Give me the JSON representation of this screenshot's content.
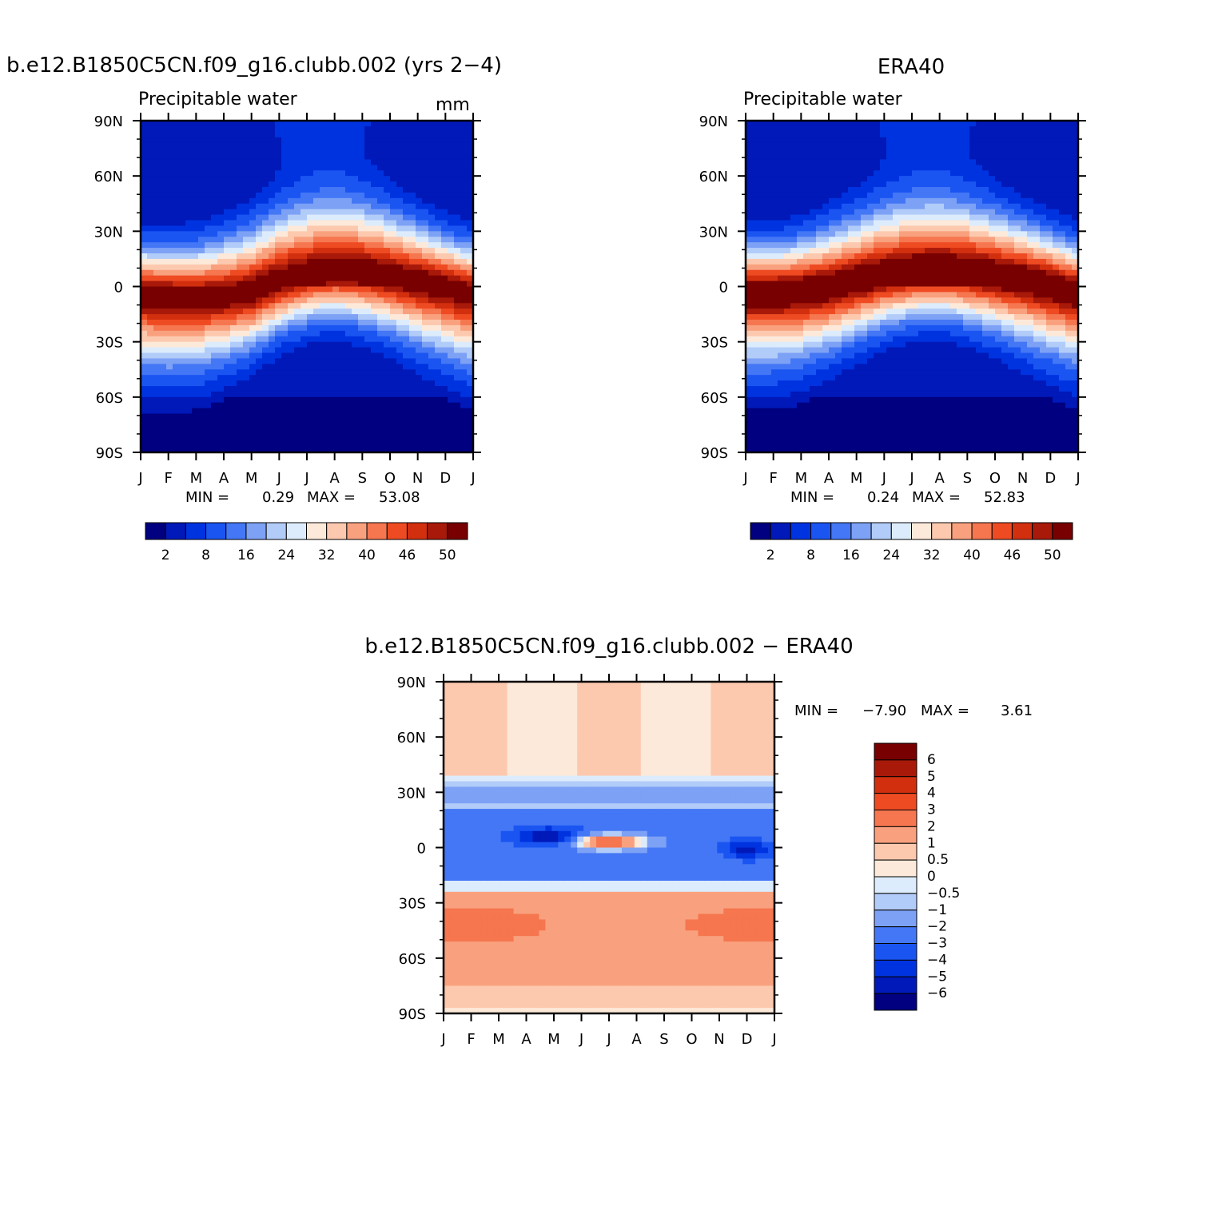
{
  "palette": [
    "#000080",
    "#0019b8",
    "#0033e0",
    "#1a55f2",
    "#4477f5",
    "#7da1f5",
    "#b2ccf9",
    "#dcecfc",
    "#fde9d9",
    "#fcc9af",
    "#f9a17e",
    "#f5764f",
    "#ef4b23",
    "#d22f0f",
    "#a8190a",
    "#790000"
  ],
  "chart_data": [
    {
      "id": "model",
      "type": "heatmap",
      "title": "b.e12.B1850C5CN.f09_g16.clubb.002 (yrs 2−4)",
      "subtitle": "Precipitable water",
      "units": "mm",
      "x_ticks": [
        "J",
        "F",
        "M",
        "A",
        "M",
        "J",
        "J",
        "A",
        "S",
        "O",
        "N",
        "D",
        "J"
      ],
      "y_ticks": [
        "90N",
        "60N",
        "30N",
        "0",
        "30S",
        "60S",
        "90S"
      ],
      "y_range": [
        -90,
        90
      ],
      "min_label": "MIN =",
      "min_value": "0.29",
      "max_label": "MAX =",
      "max_value": "53.08",
      "colorbar_labels": [
        "2",
        "8",
        "16",
        "24",
        "32",
        "40",
        "46",
        "50"
      ],
      "itcz_lat": [
        -4,
        -5,
        -6,
        -5,
        -3,
        3,
        7,
        9,
        8,
        6,
        3,
        0,
        -4
      ],
      "amp": 50,
      "width": 30
    },
    {
      "id": "obs",
      "type": "heatmap",
      "title": "ERA40",
      "subtitle": "Precipitable water",
      "units": "",
      "x_ticks": [
        "J",
        "F",
        "M",
        "A",
        "M",
        "J",
        "J",
        "A",
        "S",
        "O",
        "N",
        "D",
        "J"
      ],
      "y_ticks": [
        "90N",
        "60N",
        "30N",
        "0",
        "30S",
        "60S",
        "90S"
      ],
      "y_range": [
        -90,
        90
      ],
      "min_label": "MIN =",
      "min_value": "0.24",
      "max_label": "MAX =",
      "max_value": "52.83",
      "colorbar_labels": [
        "2",
        "8",
        "16",
        "24",
        "32",
        "40",
        "46",
        "50"
      ],
      "itcz_lat": [
        -3,
        -3,
        -2,
        0,
        3,
        6,
        8,
        9,
        8,
        6,
        4,
        1,
        -3
      ],
      "amp": 51,
      "width": 30
    },
    {
      "id": "diff",
      "type": "heatmap",
      "title": "b.e12.B1850C5CN.f09_g16.clubb.002 − ERA40",
      "x_ticks": [
        "J",
        "F",
        "M",
        "A",
        "M",
        "J",
        "J",
        "A",
        "S",
        "O",
        "N",
        "D",
        "J"
      ],
      "y_ticks": [
        "90N",
        "60N",
        "30N",
        "0",
        "30S",
        "60S",
        "90S"
      ],
      "y_range": [
        -90,
        90
      ],
      "min_label": "MIN =",
      "min_value": "−7.90",
      "max_label": "MAX =",
      "max_value": "3.61",
      "levels": [
        "6",
        "5",
        "4",
        "3",
        "2",
        "1",
        "0.5",
        "0",
        "−0.5",
        "−1",
        "−2",
        "−3",
        "−4",
        "−5",
        "−6"
      ]
    }
  ]
}
